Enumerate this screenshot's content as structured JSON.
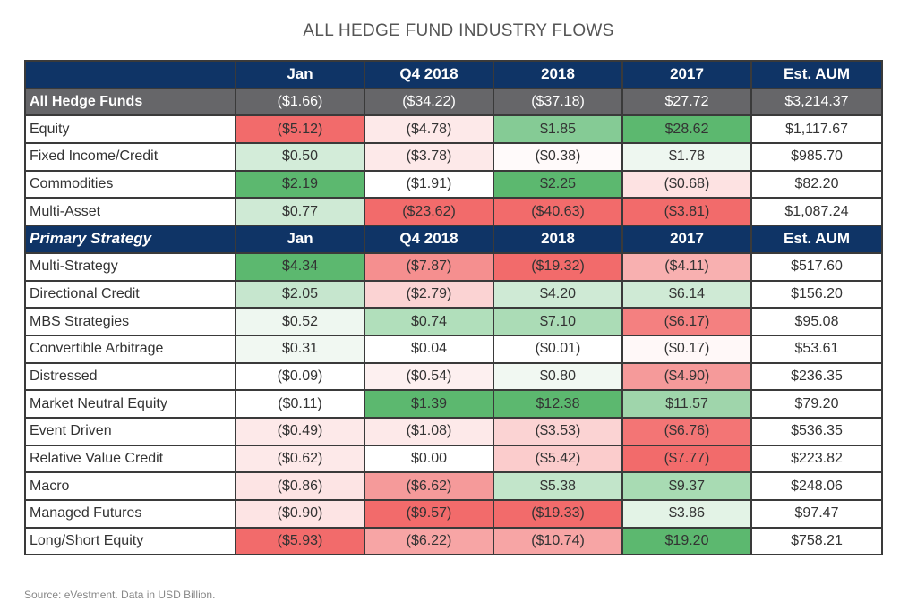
{
  "title": "ALL HEDGE FUND INDUSTRY FLOWS",
  "source": "Source: eVestment. Data in USD Billion.",
  "colors": {
    "header_bg": "#0f3466",
    "total_row_bg": "#666669"
  },
  "chart_data": {
    "type": "table",
    "title": "ALL HEDGE FUND INDUSTRY FLOWS",
    "columns": [
      "",
      "Jan",
      "Q4 2018",
      "2018",
      "2017",
      "Est. AUM"
    ],
    "total_row": {
      "label": "All Hedge Funds",
      "cells": [
        "($1.66)",
        "($34.22)",
        "($37.18)",
        "$27.72",
        "$3,214.37"
      ]
    },
    "asset_class_rows": [
      {
        "label": "Equity",
        "cells": [
          {
            "v": "($5.12)",
            "bg": "#f26b6b"
          },
          {
            "v": "($4.78)",
            "bg": "#fde9e9"
          },
          {
            "v": "$1.85",
            "bg": "#85cb95"
          },
          {
            "v": "$28.62",
            "bg": "#5cb86f"
          },
          {
            "v": "$1,117.67",
            "bg": "#ffffff"
          }
        ]
      },
      {
        "label": "Fixed Income/Credit",
        "cells": [
          {
            "v": "$0.50",
            "bg": "#d3ecd9"
          },
          {
            "v": "($3.78)",
            "bg": "#fde9e9"
          },
          {
            "v": "($0.38)",
            "bg": "#fffafa"
          },
          {
            "v": "$1.78",
            "bg": "#eef7f0"
          },
          {
            "v": "$985.70",
            "bg": "#ffffff"
          }
        ]
      },
      {
        "label": "Commodities",
        "cells": [
          {
            "v": "$2.19",
            "bg": "#5cb86f"
          },
          {
            "v": "($1.91)",
            "bg": "#ffffff"
          },
          {
            "v": "$2.25",
            "bg": "#5cb86f"
          },
          {
            "v": "($0.68)",
            "bg": "#fde2e2"
          },
          {
            "v": "$82.20",
            "bg": "#ffffff"
          }
        ]
      },
      {
        "label": "Multi-Asset",
        "cells": [
          {
            "v": "$0.77",
            "bg": "#cfead5"
          },
          {
            "v": "($23.62)",
            "bg": "#f26b6b"
          },
          {
            "v": "($40.63)",
            "bg": "#f26b6b"
          },
          {
            "v": "($3.81)",
            "bg": "#f26b6b"
          },
          {
            "v": "$1,087.24",
            "bg": "#ffffff"
          }
        ]
      }
    ],
    "strategy_header": [
      "Primary Strategy",
      "Jan",
      "Q4 2018",
      "2018",
      "2017",
      "Est. AUM"
    ],
    "strategy_rows": [
      {
        "label": "Multi-Strategy",
        "cells": [
          {
            "v": "$4.34",
            "bg": "#5cb86f"
          },
          {
            "v": "($7.87)",
            "bg": "#f58f8f"
          },
          {
            "v": "($19.32)",
            "bg": "#f26b6b"
          },
          {
            "v": "($4.11)",
            "bg": "#f8b0b0"
          },
          {
            "v": "$517.60",
            "bg": "#ffffff"
          }
        ]
      },
      {
        "label": "Directional Credit",
        "cells": [
          {
            "v": "$2.05",
            "bg": "#c6e6ce"
          },
          {
            "v": "($2.79)",
            "bg": "#fbd3d3"
          },
          {
            "v": "$4.20",
            "bg": "#cfead5"
          },
          {
            "v": "$6.14",
            "bg": "#cfead5"
          },
          {
            "v": "$156.20",
            "bg": "#ffffff"
          }
        ]
      },
      {
        "label": "MBS Strategies",
        "cells": [
          {
            "v": "$0.52",
            "bg": "#eef7f0"
          },
          {
            "v": "$0.74",
            "bg": "#b1dfbb"
          },
          {
            "v": "$7.10",
            "bg": "#abdcb6"
          },
          {
            "v": "($6.17)",
            "bg": "#f48080"
          },
          {
            "v": "$95.08",
            "bg": "#ffffff"
          }
        ]
      },
      {
        "label": "Convertible Arbitrage",
        "cells": [
          {
            "v": "$0.31",
            "bg": "#f1f8f2"
          },
          {
            "v": "$0.04",
            "bg": "#ffffff"
          },
          {
            "v": "($0.01)",
            "bg": "#ffffff"
          },
          {
            "v": "($0.17)",
            "bg": "#fff8f8"
          },
          {
            "v": "$53.61",
            "bg": "#ffffff"
          }
        ]
      },
      {
        "label": "Distressed",
        "cells": [
          {
            "v": "($0.09)",
            "bg": "#ffffff"
          },
          {
            "v": "($0.54)",
            "bg": "#fdf0f0"
          },
          {
            "v": "$0.80",
            "bg": "#f1f8f2"
          },
          {
            "v": "($4.90)",
            "bg": "#f59a9a"
          },
          {
            "v": "$236.35",
            "bg": "#ffffff"
          }
        ]
      },
      {
        "label": "Market Neutral Equity",
        "cells": [
          {
            "v": "($0.11)",
            "bg": "#ffffff"
          },
          {
            "v": "$1.39",
            "bg": "#5cb86f"
          },
          {
            "v": "$12.38",
            "bg": "#5cb86f"
          },
          {
            "v": "$11.57",
            "bg": "#9fd5ab"
          },
          {
            "v": "$79.20",
            "bg": "#ffffff"
          }
        ]
      },
      {
        "label": "Event Driven",
        "cells": [
          {
            "v": "($0.49)",
            "bg": "#fde9e9"
          },
          {
            "v": "($1.08)",
            "bg": "#fde9e9"
          },
          {
            "v": "($3.53)",
            "bg": "#fbd3d3"
          },
          {
            "v": "($6.76)",
            "bg": "#f37575"
          },
          {
            "v": "$536.35",
            "bg": "#ffffff"
          }
        ]
      },
      {
        "label": "Relative Value Credit",
        "cells": [
          {
            "v": "($0.62)",
            "bg": "#fde9e9"
          },
          {
            "v": "$0.00",
            "bg": "#ffffff"
          },
          {
            "v": "($5.42)",
            "bg": "#fbcccc"
          },
          {
            "v": "($7.77)",
            "bg": "#f26b6b"
          },
          {
            "v": "$223.82",
            "bg": "#ffffff"
          }
        ]
      },
      {
        "label": "Macro",
        "cells": [
          {
            "v": "($0.86)",
            "bg": "#fde4e4"
          },
          {
            "v": "($6.62)",
            "bg": "#f59a9a"
          },
          {
            "v": "$5.38",
            "bg": "#c2e5ca"
          },
          {
            "v": "$9.37",
            "bg": "#a8dbb3"
          },
          {
            "v": "$248.06",
            "bg": "#ffffff"
          }
        ]
      },
      {
        "label": "Managed Futures",
        "cells": [
          {
            "v": "($0.90)",
            "bg": "#fde4e4"
          },
          {
            "v": "($9.57)",
            "bg": "#f26b6b"
          },
          {
            "v": "($19.33)",
            "bg": "#f26b6b"
          },
          {
            "v": "$3.86",
            "bg": "#e3f3e6"
          },
          {
            "v": "$97.47",
            "bg": "#ffffff"
          }
        ]
      },
      {
        "label": "Long/Short Equity",
        "cells": [
          {
            "v": "($5.93)",
            "bg": "#f26b6b"
          },
          {
            "v": "($6.22)",
            "bg": "#f7a5a5"
          },
          {
            "v": "($10.74)",
            "bg": "#f7a5a5"
          },
          {
            "v": "$19.20",
            "bg": "#5cb86f"
          },
          {
            "v": "$758.21",
            "bg": "#ffffff"
          }
        ]
      }
    ]
  }
}
